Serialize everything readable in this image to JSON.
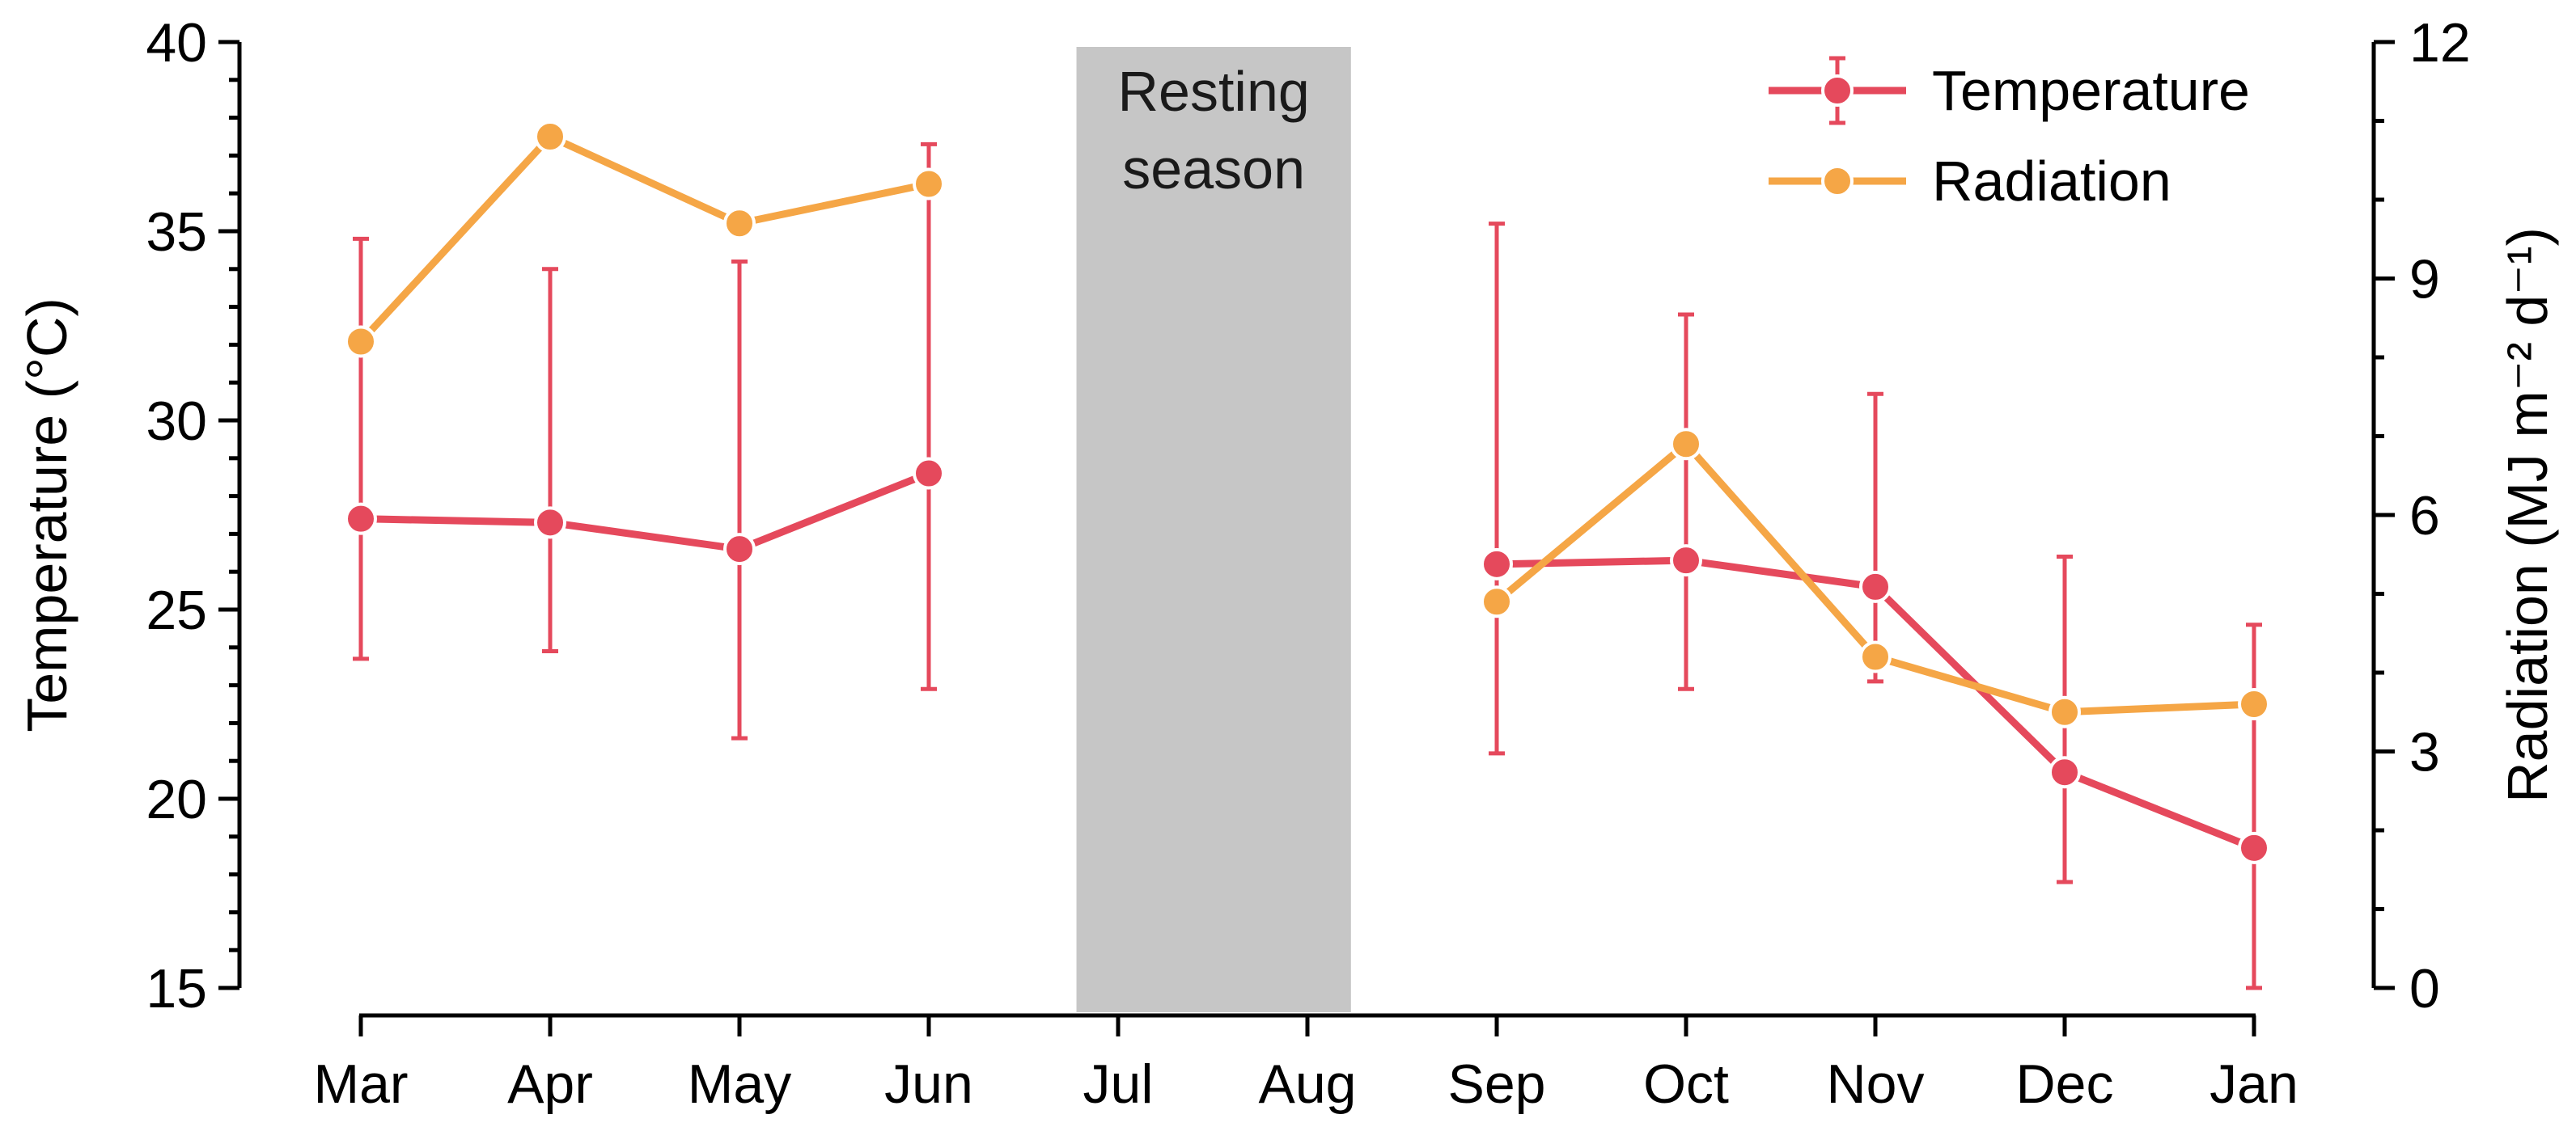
{
  "colors": {
    "temperature": "#e5495c",
    "radiation": "#f5a646",
    "resting_band": "#c6c6c6",
    "axis": "#000000"
  },
  "chart_data": {
    "type": "line",
    "categories": [
      "Mar",
      "Apr",
      "May",
      "Jun",
      "Jul",
      "Aug",
      "Sep",
      "Oct",
      "Nov",
      "Dec",
      "Jan"
    ],
    "left_axis": {
      "label": "Temperature (°C)",
      "range": [
        15,
        40
      ],
      "ticks": [
        "15",
        "20",
        "25",
        "30",
        "35",
        "40"
      ]
    },
    "right_axis": {
      "label": "Radiation (MJ m⁻² d⁻¹)",
      "range": [
        0,
        12
      ],
      "ticks": [
        "0",
        "3",
        "6",
        "9",
        "12"
      ]
    },
    "shaded_region": {
      "label_line1": "Resting",
      "label_line2": "season",
      "from_category": "Jul",
      "to_category": "Aug"
    },
    "series": [
      {
        "name": "Temperature",
        "axis": "left",
        "segments": [
          [
            {
              "x": "Mar",
              "y": 27.4,
              "lo": 23.7,
              "hi": 34.8
            },
            {
              "x": "Apr",
              "y": 27.3,
              "lo": 23.9,
              "hi": 34.0
            },
            {
              "x": "May",
              "y": 26.6,
              "lo": 21.6,
              "hi": 34.2
            },
            {
              "x": "Jun",
              "y": 28.6,
              "lo": 22.9,
              "hi": 37.3
            }
          ],
          [
            {
              "x": "Sep",
              "y": 26.2,
              "lo": 21.2,
              "hi": 35.2
            },
            {
              "x": "Oct",
              "y": 26.3,
              "lo": 22.9,
              "hi": 32.8
            },
            {
              "x": "Nov",
              "y": 25.6,
              "lo": 23.1,
              "hi": 30.7
            },
            {
              "x": "Dec",
              "y": 20.7,
              "lo": 17.8,
              "hi": 26.4
            },
            {
              "x": "Jan",
              "y": 18.7,
              "lo": 15.0,
              "hi": 24.6
            }
          ]
        ]
      },
      {
        "name": "Radiation",
        "axis": "right",
        "segments": [
          [
            {
              "x": "Mar",
              "y": 8.2
            },
            {
              "x": "Apr",
              "y": 10.8
            },
            {
              "x": "May",
              "y": 9.7
            },
            {
              "x": "Jun",
              "y": 10.2
            }
          ],
          [
            {
              "x": "Sep",
              "y": 4.9
            },
            {
              "x": "Oct",
              "y": 6.9
            },
            {
              "x": "Nov",
              "y": 4.2
            },
            {
              "x": "Dec",
              "y": 3.5
            },
            {
              "x": "Jan",
              "y": 3.6
            }
          ]
        ]
      }
    ],
    "legend": {
      "position": "top-right",
      "entries": [
        "Temperature",
        "Radiation"
      ]
    }
  }
}
